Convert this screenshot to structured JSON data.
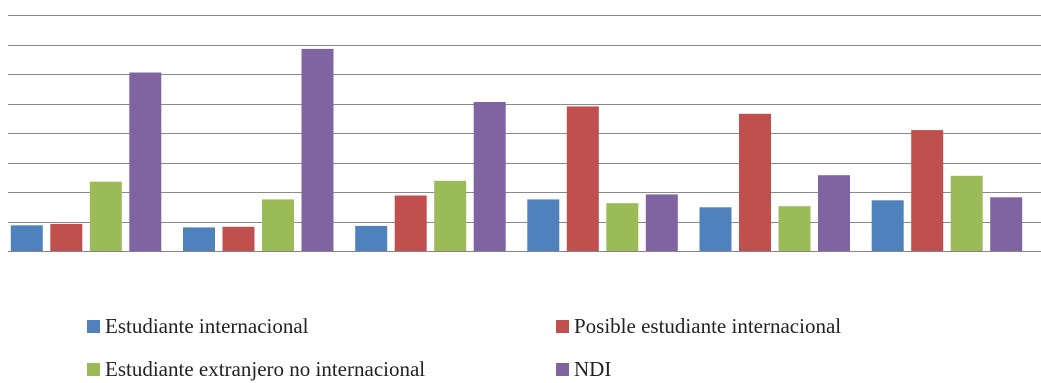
{
  "chart_data": {
    "type": "bar",
    "categories": [
      "",
      "",
      "",
      "",
      "",
      ""
    ],
    "ylim": [
      0,
      8
    ],
    "grid": true,
    "legend_position": "bottom",
    "series": [
      {
        "name": "Estudiante internacional",
        "color": "#4F81BD",
        "values": [
          0.87,
          0.8,
          0.85,
          1.75,
          1.48,
          1.72
        ]
      },
      {
        "name": "Posible estudiante internacional",
        "color": "#C0504D",
        "values": [
          0.92,
          0.82,
          1.88,
          4.9,
          4.65,
          4.1
        ]
      },
      {
        "name": "Estudiante extranjero no internacional",
        "color": "#9BBB59",
        "values": [
          2.35,
          1.75,
          2.38,
          1.62,
          1.52,
          2.55
        ]
      },
      {
        "name": "NDI",
        "color": "#8064A2",
        "values": [
          6.05,
          6.85,
          5.05,
          1.92,
          2.57,
          1.82
        ]
      }
    ]
  }
}
